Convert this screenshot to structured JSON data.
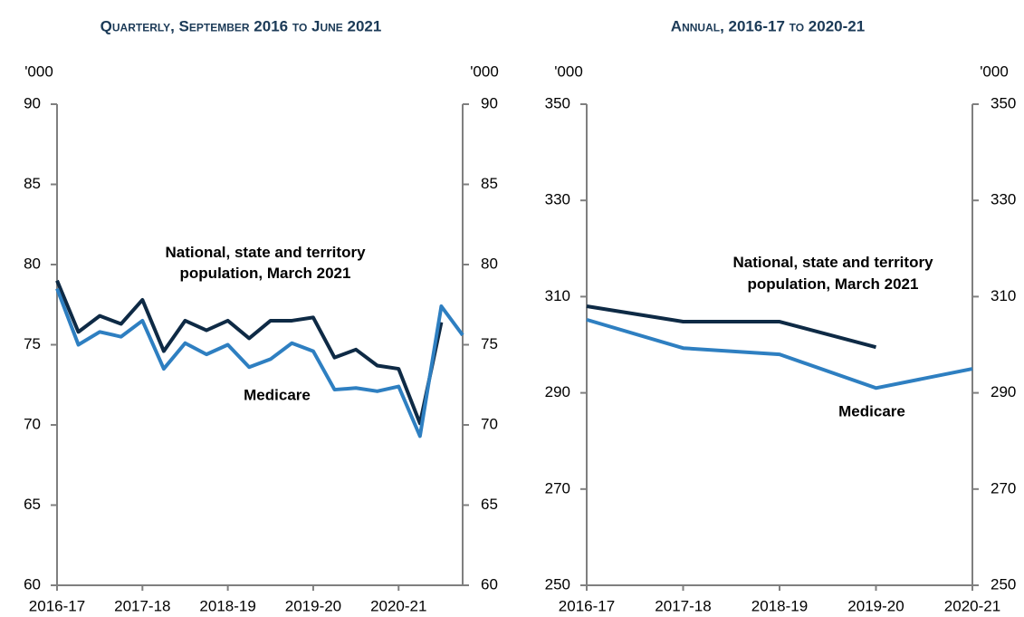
{
  "chart_data": [
    {
      "type": "line",
      "title": "Quarterly, September 2016 to June 2021",
      "y_unit": "'000",
      "y2_unit": "'000",
      "categories": [
        "2016-17",
        null,
        null,
        null,
        "2017-18",
        null,
        null,
        null,
        "2018-19",
        null,
        null,
        null,
        "2019-20",
        null,
        null,
        null,
        "2020-21",
        null,
        null,
        null
      ],
      "series": [
        {
          "name": "National, state and territory population, March 2021",
          "color": "#0e2a45",
          "values": [
            79.0,
            75.8,
            76.8,
            76.3,
            77.8,
            74.6,
            76.5,
            75.9,
            76.5,
            75.4,
            76.5,
            76.5,
            76.7,
            74.2,
            74.7,
            73.7,
            73.5,
            70.1,
            76.4,
            null
          ]
        },
        {
          "name": "Medicare",
          "color": "#2e7fc1",
          "values": [
            78.5,
            75.0,
            75.8,
            75.5,
            76.5,
            73.5,
            75.1,
            74.4,
            75.0,
            73.6,
            74.1,
            75.1,
            74.6,
            72.2,
            72.3,
            72.1,
            72.4,
            69.3,
            77.4,
            75.6
          ]
        }
      ],
      "ylim": [
        60,
        90
      ],
      "yticks": [
        60,
        65,
        70,
        75,
        80,
        85,
        90
      ],
      "y2lim": [
        60,
        90
      ],
      "y2ticks": [
        60,
        65,
        70,
        75,
        80,
        85,
        90
      ]
    },
    {
      "type": "line",
      "title": "Annual, 2016-17 to 2020-21",
      "y_unit": "'000",
      "y2_unit": "'000",
      "categories": [
        "2016-17",
        "2017-18",
        "2018-19",
        "2019-20",
        "2020-21"
      ],
      "series": [
        {
          "name": "National, state and territory population, March 2021",
          "color": "#0e2a45",
          "values": [
            308.0,
            304.8,
            304.8,
            299.5,
            null
          ]
        },
        {
          "name": "Medicare",
          "color": "#2e7fc1",
          "values": [
            305.2,
            299.3,
            298.0,
            291.0,
            295.0
          ]
        }
      ],
      "ylim": [
        250,
        350
      ],
      "yticks": [
        250,
        270,
        290,
        310,
        330,
        350
      ],
      "y2lim": [
        250,
        350
      ],
      "y2ticks": [
        250,
        270,
        290,
        310,
        330,
        350
      ]
    }
  ]
}
